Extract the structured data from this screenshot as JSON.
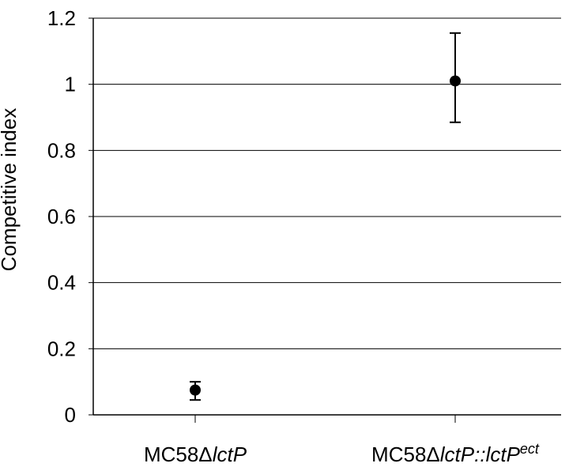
{
  "chart_data": {
    "type": "scatter",
    "ylabel": "Competitive index",
    "ylim": [
      0,
      1.2
    ],
    "yticks": [
      "0",
      "0.2",
      "0.4",
      "0.6",
      "0.8",
      "1",
      "1.2"
    ],
    "grid": true,
    "categories": [
      {
        "prefix": "MC58",
        "delta": "Δ",
        "italic1": "lctP",
        "mid": "",
        "italic2": "",
        "sup": ""
      },
      {
        "prefix": "MC58",
        "delta": "Δ",
        "italic1": "lctP::lctP",
        "mid": "",
        "italic2": "",
        "sup": "ect"
      }
    ],
    "points": [
      {
        "y": 0.075,
        "err_low": 0.045,
        "err_high": 0.1
      },
      {
        "y": 1.01,
        "err_low": 0.885,
        "err_high": 1.155
      }
    ]
  }
}
